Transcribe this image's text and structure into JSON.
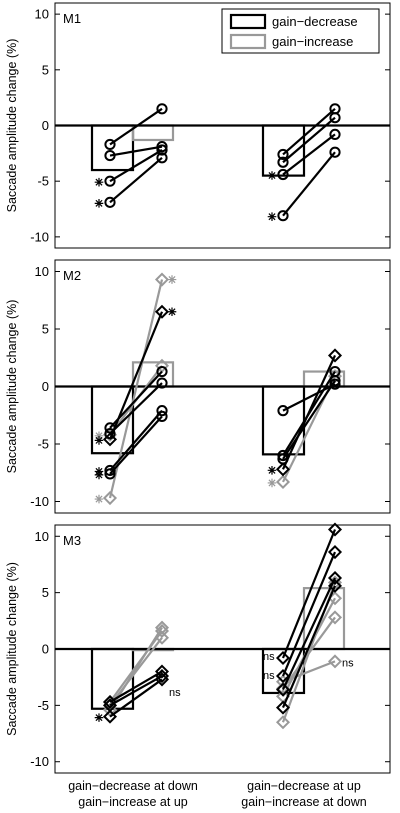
{
  "chart_data": [
    {
      "type": "bar",
      "panel_label": "M1",
      "ylabel": "Saccade amplitude change (%)",
      "ylim": [
        -11,
        11
      ],
      "yticks": [
        -10,
        -5,
        0,
        5,
        10
      ],
      "grid": false,
      "legend": {
        "placement": "top-right",
        "entries": [
          {
            "label": "gain−decrease",
            "color": "#000000"
          },
          {
            "label": "gain−increase",
            "color": "#999999"
          }
        ]
      },
      "groups": [
        {
          "bars": [
            {
              "condition": "gain-decrease",
              "value": -4.0
            },
            {
              "condition": "gain-increase",
              "value": -1.3
            }
          ],
          "sessions": [
            {
              "condition": "gain-decrease",
              "marker": "circle",
              "before": -1.7,
              "after": 1.5
            },
            {
              "condition": "gain-decrease",
              "marker": "circle",
              "before": -2.7,
              "after": -1.9
            },
            {
              "condition": "gain-decrease",
              "marker": "circle",
              "before": -5.0,
              "after": -2.2,
              "star_before": true
            },
            {
              "condition": "gain-decrease",
              "marker": "circle",
              "before": -6.9,
              "after": -2.9,
              "star_before": true
            }
          ]
        },
        {
          "bars": [
            {
              "condition": "gain-decrease",
              "value": -4.5
            },
            {
              "condition": "gain-increase",
              "value": 0.0
            }
          ],
          "sessions": [
            {
              "condition": "gain-decrease",
              "marker": "circle",
              "before": -2.6,
              "after": 1.5
            },
            {
              "condition": "gain-decrease",
              "marker": "circle",
              "before": -3.3,
              "after": 0.7
            },
            {
              "condition": "gain-decrease",
              "marker": "circle",
              "before": -4.4,
              "after": -0.8,
              "star_before": true
            },
            {
              "condition": "gain-decrease",
              "marker": "circle",
              "before": -8.1,
              "after": -2.4,
              "star_before": true
            }
          ]
        }
      ]
    },
    {
      "type": "bar",
      "panel_label": "M2",
      "ylabel": "Saccade amplitude change (%)",
      "ylim": [
        -11,
        11
      ],
      "yticks": [
        -10,
        -5,
        0,
        5,
        10
      ],
      "grid": false,
      "groups": [
        {
          "bars": [
            {
              "condition": "gain-decrease",
              "value": -5.8
            },
            {
              "condition": "gain-increase",
              "value": 2.1
            }
          ],
          "sessions": [
            {
              "condition": "gain-decrease",
              "marker": "circle",
              "before": -3.6,
              "after": 1.3
            },
            {
              "condition": "gain-decrease",
              "marker": "circle",
              "before": -4.1,
              "after": 0.3
            },
            {
              "condition": "gain-decrease",
              "marker": "circle",
              "before": -7.3,
              "after": -2.1,
              "star_before": true
            },
            {
              "condition": "gain-decrease",
              "marker": "circle",
              "before": -7.6,
              "after": -2.6,
              "star_before": true
            },
            {
              "condition": "gain-decrease",
              "marker": "diamond",
              "before": -4.6,
              "after": 6.5,
              "star_before": true,
              "star_after": true
            },
            {
              "condition": "gain-increase",
              "marker": "diamond",
              "before": -9.7,
              "after": 9.3,
              "star_before": true,
              "star_after": true
            },
            {
              "condition": "gain-increase",
              "marker": "diamond",
              "before": -4.2,
              "after": 1.8,
              "star_before": true
            }
          ]
        },
        {
          "bars": [
            {
              "condition": "gain-decrease",
              "value": -5.9
            },
            {
              "condition": "gain-increase",
              "value": 1.3
            }
          ],
          "sessions": [
            {
              "condition": "gain-decrease",
              "marker": "circle",
              "before": -2.1,
              "after": 0.2
            },
            {
              "condition": "gain-decrease",
              "marker": "circle",
              "before": -6.0,
              "after": 1.3
            },
            {
              "condition": "gain-decrease",
              "marker": "circle",
              "before": -6.3,
              "after": 0.5
            },
            {
              "condition": "gain-decrease",
              "marker": "diamond",
              "before": -7.2,
              "after": 2.7,
              "star_before": true
            },
            {
              "condition": "gain-increase",
              "marker": "diamond",
              "before": -8.3,
              "after": 0.9,
              "star_before": true
            }
          ]
        }
      ]
    },
    {
      "type": "bar",
      "panel_label": "M3",
      "ylabel": "Saccade amplitude change (%)",
      "ylim": [
        -11,
        11
      ],
      "yticks": [
        -10,
        -5,
        0,
        5,
        10
      ],
      "grid": false,
      "xticklabels": [
        [
          "gain−decrease at down",
          "gain−increase at up"
        ],
        [
          "gain−decrease at up",
          "gain−increase at down"
        ]
      ],
      "groups": [
        {
          "bars": [
            {
              "condition": "gain-decrease",
              "value": -5.3
            },
            {
              "condition": "gain-increase",
              "value": -0.1
            }
          ],
          "sessions": [
            {
              "condition": "gain-decrease",
              "marker": "diamond",
              "before": -4.7,
              "after": -2.0
            },
            {
              "condition": "gain-decrease",
              "marker": "diamond",
              "before": -5.0,
              "after": -2.4
            },
            {
              "condition": "gain-decrease",
              "marker": "diamond",
              "before": -6.0,
              "after": -2.7,
              "star_before": true
            },
            {
              "condition": "gain-increase",
              "marker": "diamond",
              "before": -5.4,
              "after": 1.9
            },
            {
              "condition": "gain-increase",
              "marker": "diamond",
              "before": -4.7,
              "after": 1.6
            },
            {
              "condition": "gain-increase",
              "marker": "diamond",
              "before": -5.0,
              "after": 1.0
            }
          ],
          "annotations": [
            {
              "text": "ns",
              "y": -3.8
            }
          ]
        },
        {
          "bars": [
            {
              "condition": "gain-decrease",
              "value": -3.9
            },
            {
              "condition": "gain-increase",
              "value": 5.4
            }
          ],
          "sessions": [
            {
              "condition": "gain-decrease",
              "marker": "diamond",
              "before": -0.8,
              "after": 10.6
            },
            {
              "condition": "gain-decrease",
              "marker": "diamond",
              "before": -2.4,
              "after": 8.6
            },
            {
              "condition": "gain-decrease",
              "marker": "diamond",
              "before": -3.6,
              "after": 6.3
            },
            {
              "condition": "gain-decrease",
              "marker": "diamond",
              "before": -5.2,
              "after": 5.6
            },
            {
              "condition": "gain-increase",
              "marker": "diamond",
              "before": -6.5,
              "after": 5.9
            },
            {
              "condition": "gain-increase",
              "marker": "diamond",
              "before": -4.2,
              "after": 4.5
            },
            {
              "condition": "gain-increase",
              "marker": "diamond",
              "before": -3.5,
              "after": 2.8
            },
            {
              "condition": "gain-increase",
              "marker": "diamond",
              "before": -2.9,
              "after": -1.1
            }
          ],
          "annotations": [
            {
              "text": "ns",
              "y": -0.6,
              "side": "left"
            },
            {
              "text": "ns",
              "y": -2.3,
              "side": "left"
            },
            {
              "text": "ns",
              "y": -1.2,
              "side": "right"
            }
          ]
        }
      ]
    }
  ]
}
